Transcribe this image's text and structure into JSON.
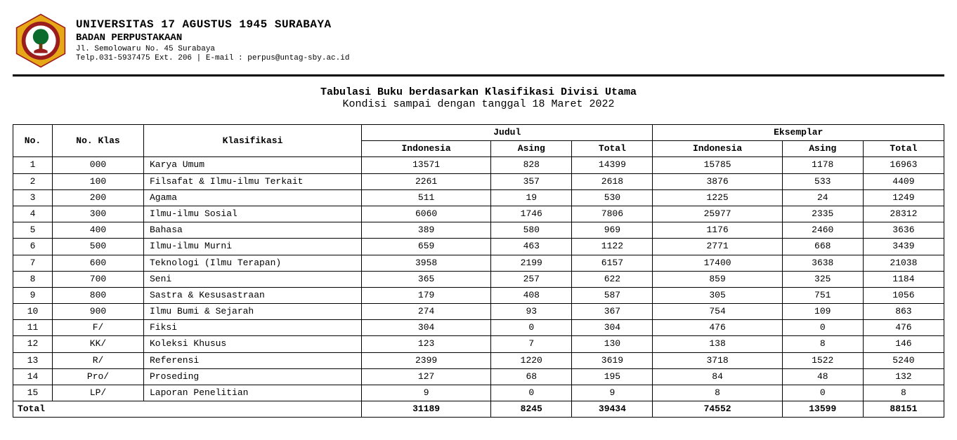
{
  "header": {
    "university": "UNIVERSITAS 17 AGUSTUS 1945 SURABAYA",
    "department": "BADAN PERPUSTAKAAN",
    "address": "Jl. Semolowaru No. 45 Surabaya",
    "contact": "Telp.031-5937475 Ext. 206 | E-mail : perpus@untag-sby.ac.id"
  },
  "logo": {
    "outer_color": "#e6a817",
    "inner_color": "#9b1c1c",
    "center_color": "#0a6b2d"
  },
  "title": {
    "line1": "Tabulasi Buku berdasarkan Klasifikasi Divisi Utama",
    "line2": "Kondisi sampai dengan tanggal 18 Maret 2022"
  },
  "table": {
    "headers": {
      "no": "No.",
      "no_klas": "No. Klas",
      "klasifikasi": "Klasifikasi",
      "judul": "Judul",
      "eksemplar": "Eksemplar",
      "indonesia": "Indonesia",
      "asing": "Asing",
      "total": "Total"
    },
    "rows": [
      {
        "no": "1",
        "klas": "000",
        "name": "Karya Umum",
        "j_id": "13571",
        "j_as": "828",
        "j_t": "14399",
        "e_id": "15785",
        "e_as": "1178",
        "e_t": "16963"
      },
      {
        "no": "2",
        "klas": "100",
        "name": "Filsafat & Ilmu-ilmu Terkait",
        "j_id": "2261",
        "j_as": "357",
        "j_t": "2618",
        "e_id": "3876",
        "e_as": "533",
        "e_t": "4409"
      },
      {
        "no": "3",
        "klas": "200",
        "name": "Agama",
        "j_id": "511",
        "j_as": "19",
        "j_t": "530",
        "e_id": "1225",
        "e_as": "24",
        "e_t": "1249"
      },
      {
        "no": "4",
        "klas": "300",
        "name": "Ilmu-ilmu Sosial",
        "j_id": "6060",
        "j_as": "1746",
        "j_t": "7806",
        "e_id": "25977",
        "e_as": "2335",
        "e_t": "28312"
      },
      {
        "no": "5",
        "klas": "400",
        "name": "Bahasa",
        "j_id": "389",
        "j_as": "580",
        "j_t": "969",
        "e_id": "1176",
        "e_as": "2460",
        "e_t": "3636"
      },
      {
        "no": "6",
        "klas": "500",
        "name": "Ilmu-ilmu Murni",
        "j_id": "659",
        "j_as": "463",
        "j_t": "1122",
        "e_id": "2771",
        "e_as": "668",
        "e_t": "3439"
      },
      {
        "no": "7",
        "klas": "600",
        "name": "Teknologi (Ilmu Terapan)",
        "j_id": "3958",
        "j_as": "2199",
        "j_t": "6157",
        "e_id": "17400",
        "e_as": "3638",
        "e_t": "21038"
      },
      {
        "no": "8",
        "klas": "700",
        "name": "Seni",
        "j_id": "365",
        "j_as": "257",
        "j_t": "622",
        "e_id": "859",
        "e_as": "325",
        "e_t": "1184"
      },
      {
        "no": "9",
        "klas": "800",
        "name": "Sastra & Kesusastraan",
        "j_id": "179",
        "j_as": "408",
        "j_t": "587",
        "e_id": "305",
        "e_as": "751",
        "e_t": "1056"
      },
      {
        "no": "10",
        "klas": "900",
        "name": "Ilmu Bumi & Sejarah",
        "j_id": "274",
        "j_as": "93",
        "j_t": "367",
        "e_id": "754",
        "e_as": "109",
        "e_t": "863"
      },
      {
        "no": "11",
        "klas": "F/",
        "name": "Fiksi",
        "j_id": "304",
        "j_as": "0",
        "j_t": "304",
        "e_id": "476",
        "e_as": "0",
        "e_t": "476"
      },
      {
        "no": "12",
        "klas": "KK/",
        "name": "Koleksi Khusus",
        "j_id": "123",
        "j_as": "7",
        "j_t": "130",
        "e_id": "138",
        "e_as": "8",
        "e_t": "146"
      },
      {
        "no": "13",
        "klas": "R/",
        "name": "Referensi",
        "j_id": "2399",
        "j_as": "1220",
        "j_t": "3619",
        "e_id": "3718",
        "e_as": "1522",
        "e_t": "5240"
      },
      {
        "no": "14",
        "klas": "Pro/",
        "name": "Proseding",
        "j_id": "127",
        "j_as": "68",
        "j_t": "195",
        "e_id": "84",
        "e_as": "48",
        "e_t": "132"
      },
      {
        "no": "15",
        "klas": "LP/",
        "name": "Laporan Penelitian",
        "j_id": "9",
        "j_as": "0",
        "j_t": "9",
        "e_id": "8",
        "e_as": "0",
        "e_t": "8"
      }
    ],
    "totals": {
      "label": "Total",
      "j_id": "31189",
      "j_as": "8245",
      "j_t": "39434",
      "e_id": "74552",
      "e_as": "13599",
      "e_t": "88151"
    }
  }
}
